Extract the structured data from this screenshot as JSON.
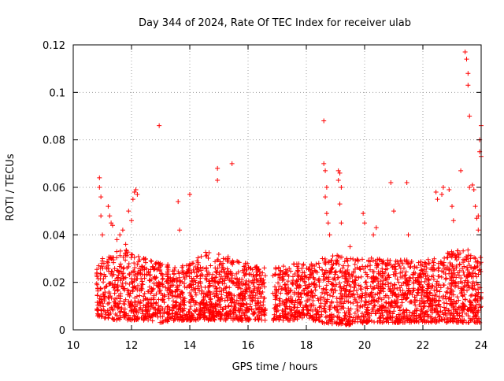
{
  "chart_data": {
    "type": "scatter",
    "title": "Day 344 of 2024, Rate Of TEC Index for receiver ulab",
    "xlabel": "GPS time / hours",
    "ylabel": "ROTI / TECUs",
    "xlim": [
      10,
      24
    ],
    "ylim": [
      0,
      0.12
    ],
    "xticks": [
      10,
      12,
      14,
      16,
      18,
      20,
      22,
      24
    ],
    "yticks": [
      0,
      0.02,
      0.04,
      0.06,
      0.08,
      0.1,
      0.12
    ],
    "ytick_labels": [
      "0",
      "0.02",
      "0.04",
      "0.06",
      "0.08",
      "0.1",
      "0.12"
    ],
    "grid": true,
    "marker": "+",
    "series": [
      {
        "name": "ROTI",
        "color": "#ff0000",
        "data_gap_hours": [
          16.6,
          16.85
        ],
        "bulk_envelope": {
          "x": [
            10.8,
            11.0,
            11.5,
            12.0,
            12.5,
            13.0,
            13.5,
            14.0,
            14.5,
            15.0,
            15.5,
            16.0,
            16.6,
            16.9,
            17.5,
            17.9,
            18.0,
            18.5,
            19.0,
            19.5,
            20.0,
            20.5,
            21.0,
            21.5,
            22.0,
            22.5,
            23.0,
            23.5,
            24.0
          ],
          "y_min": [
            0.006,
            0.005,
            0.004,
            0.004,
            0.004,
            0.003,
            0.004,
            0.004,
            0.004,
            0.004,
            0.004,
            0.004,
            0.004,
            0.004,
            0.004,
            0.005,
            0.005,
            0.003,
            0.002,
            0.002,
            0.003,
            0.003,
            0.003,
            0.003,
            0.003,
            0.003,
            0.003,
            0.003,
            0.003
          ],
          "y_max": [
            0.028,
            0.031,
            0.035,
            0.033,
            0.03,
            0.028,
            0.027,
            0.028,
            0.033,
            0.032,
            0.03,
            0.028,
            0.026,
            0.026,
            0.028,
            0.028,
            0.027,
            0.03,
            0.032,
            0.03,
            0.031,
            0.03,
            0.029,
            0.03,
            0.029,
            0.031,
            0.033,
            0.034,
            0.031
          ]
        },
        "outliers": {
          "x": [
            10.9,
            10.9,
            10.95,
            10.95,
            11.0,
            11.2,
            11.25,
            11.3,
            11.35,
            11.5,
            11.6,
            11.7,
            11.8,
            11.9,
            12.0,
            12.05,
            12.1,
            12.15,
            12.2,
            12.95,
            13.6,
            13.65,
            14.0,
            14.95,
            14.95,
            15.45,
            18.6,
            18.6,
            18.65,
            18.65,
            18.7,
            18.7,
            18.75,
            18.8,
            19.1,
            19.1,
            19.15,
            19.2,
            19.15,
            19.2,
            19.5,
            19.95,
            20.0,
            20.3,
            20.4,
            20.9,
            21.0,
            21.45,
            21.5,
            22.45,
            22.5,
            22.65,
            22.7,
            22.9,
            23.0,
            23.05,
            23.3,
            23.45,
            23.5,
            23.55,
            23.55,
            23.6,
            23.6,
            23.7,
            23.75,
            23.8,
            23.85,
            23.9,
            23.95,
            24.0,
            23.95,
            24.0,
            23.9
          ],
          "y": [
            0.064,
            0.06,
            0.056,
            0.048,
            0.04,
            0.052,
            0.048,
            0.045,
            0.044,
            0.038,
            0.04,
            0.042,
            0.036,
            0.05,
            0.046,
            0.055,
            0.058,
            0.059,
            0.057,
            0.086,
            0.054,
            0.042,
            0.057,
            0.068,
            0.063,
            0.07,
            0.088,
            0.07,
            0.067,
            0.056,
            0.06,
            0.049,
            0.045,
            0.04,
            0.067,
            0.063,
            0.066,
            0.06,
            0.053,
            0.045,
            0.035,
            0.049,
            0.045,
            0.04,
            0.043,
            0.062,
            0.05,
            0.062,
            0.04,
            0.058,
            0.055,
            0.057,
            0.06,
            0.059,
            0.052,
            0.046,
            0.067,
            0.117,
            0.114,
            0.108,
            0.103,
            0.09,
            0.06,
            0.061,
            0.059,
            0.052,
            0.047,
            0.042,
            0.075,
            0.086,
            0.08,
            0.073,
            0.048
          ]
        }
      }
    ]
  }
}
